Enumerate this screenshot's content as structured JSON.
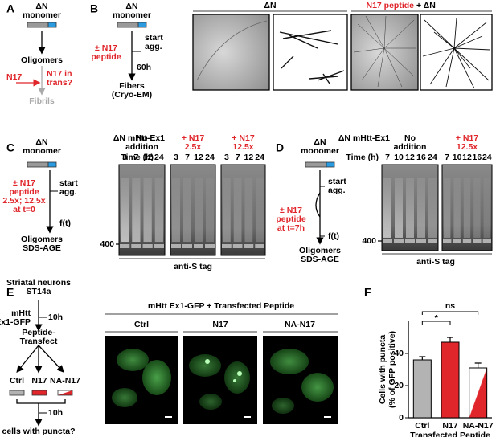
{
  "panel_a": {
    "label": "A",
    "monomer": [
      "ΔN",
      "monomer"
    ],
    "oligomers": "Oligomers",
    "n17": "N17",
    "question": [
      "N17 in",
      "trans?"
    ],
    "fibrils": "Fibrils"
  },
  "panel_b": {
    "label": "B",
    "monomer": [
      "ΔN",
      "monomer"
    ],
    "peptide": [
      "± N17",
      "peptide"
    ],
    "start": [
      "start",
      "agg."
    ],
    "time": "60h",
    "fibers": [
      "Fibers",
      "(Cryo-EM)"
    ],
    "group_1": "ΔN",
    "group_2_red": "N17 peptide",
    "group_2_rest": "+ ΔN"
  },
  "panel_c": {
    "label": "C",
    "monomer": [
      "ΔN",
      "monomer"
    ],
    "peptide": [
      "± N17",
      "peptide",
      "2.5x; 12.5x",
      "at t=0"
    ],
    "start": [
      "start",
      "agg."
    ],
    "ft": "f(t)",
    "readout": [
      "Oligomers",
      "SDS-AGE"
    ],
    "construct": "ΔN mHtt-Ex1",
    "time_label": "Time (h)",
    "lanes": [
      {
        "header": [
          "No",
          "addition"
        ],
        "color": "#000000",
        "times": [
          3,
          7,
          12,
          24
        ]
      },
      {
        "header": [
          "+ N17",
          "2.5x"
        ],
        "color": "#e0262b",
        "times": [
          3,
          7,
          12,
          24
        ]
      },
      {
        "header": [
          "+ N17",
          "12.5x"
        ],
        "color": "#e0262b",
        "times": [
          3,
          7,
          12,
          24
        ]
      }
    ],
    "marker": 400,
    "antibody": "anti-S tag"
  },
  "panel_d": {
    "label": "D",
    "monomer": [
      "ΔN",
      "monomer"
    ],
    "start": [
      "start",
      "agg."
    ],
    "peptide": [
      "± N17",
      "peptide",
      "at t=7h"
    ],
    "ft": "f(t)",
    "readout": [
      "Oligomers",
      "SDS-AGE"
    ],
    "construct": "ΔN mHtt-Ex1",
    "time_label": "Time (h)",
    "lanes": [
      {
        "header": [
          "No",
          "addition"
        ],
        "color": "#000000",
        "times": [
          7,
          10,
          12,
          16,
          24
        ]
      },
      {
        "header": [
          "+ N17",
          "12.5x"
        ],
        "color": "#e0262b",
        "times": [
          7,
          10,
          12,
          16,
          24
        ]
      }
    ],
    "marker": 400,
    "antibody": "anti-S tag"
  },
  "panel_e": {
    "label": "E",
    "cells": [
      "Striatal neurons",
      "ST14a"
    ],
    "transfect": [
      "mHtt",
      "Ex1-GFP"
    ],
    "time_1": "10h",
    "step": [
      "Peptide-",
      "Transfect"
    ],
    "groups": [
      "Ctrl",
      "N17",
      "NA-N17"
    ],
    "time_2": "10h",
    "question": "cells with puncta?",
    "header": "mHtt Ex1-GFP + Transfected Peptide",
    "image_labels": [
      "Ctrl",
      "N17",
      "NA-N17"
    ]
  },
  "panel_f": {
    "label": "F",
    "type": "bar",
    "y_label": [
      "Cells with puncta",
      "(% of GFP positive)"
    ],
    "x_label": "Transfected Peptide",
    "categories": [
      "Ctrl",
      "N17",
      "NA-N17"
    ],
    "values": [
      36,
      47,
      31
    ],
    "errors": [
      2,
      3,
      3
    ],
    "colors": [
      "#b3b3b3",
      "#e0262b",
      "#e0262b"
    ],
    "ylim": [
      0,
      60
    ],
    "yticks": [
      0,
      20,
      40
    ],
    "annotations": [
      "ns",
      "*"
    ]
  }
}
